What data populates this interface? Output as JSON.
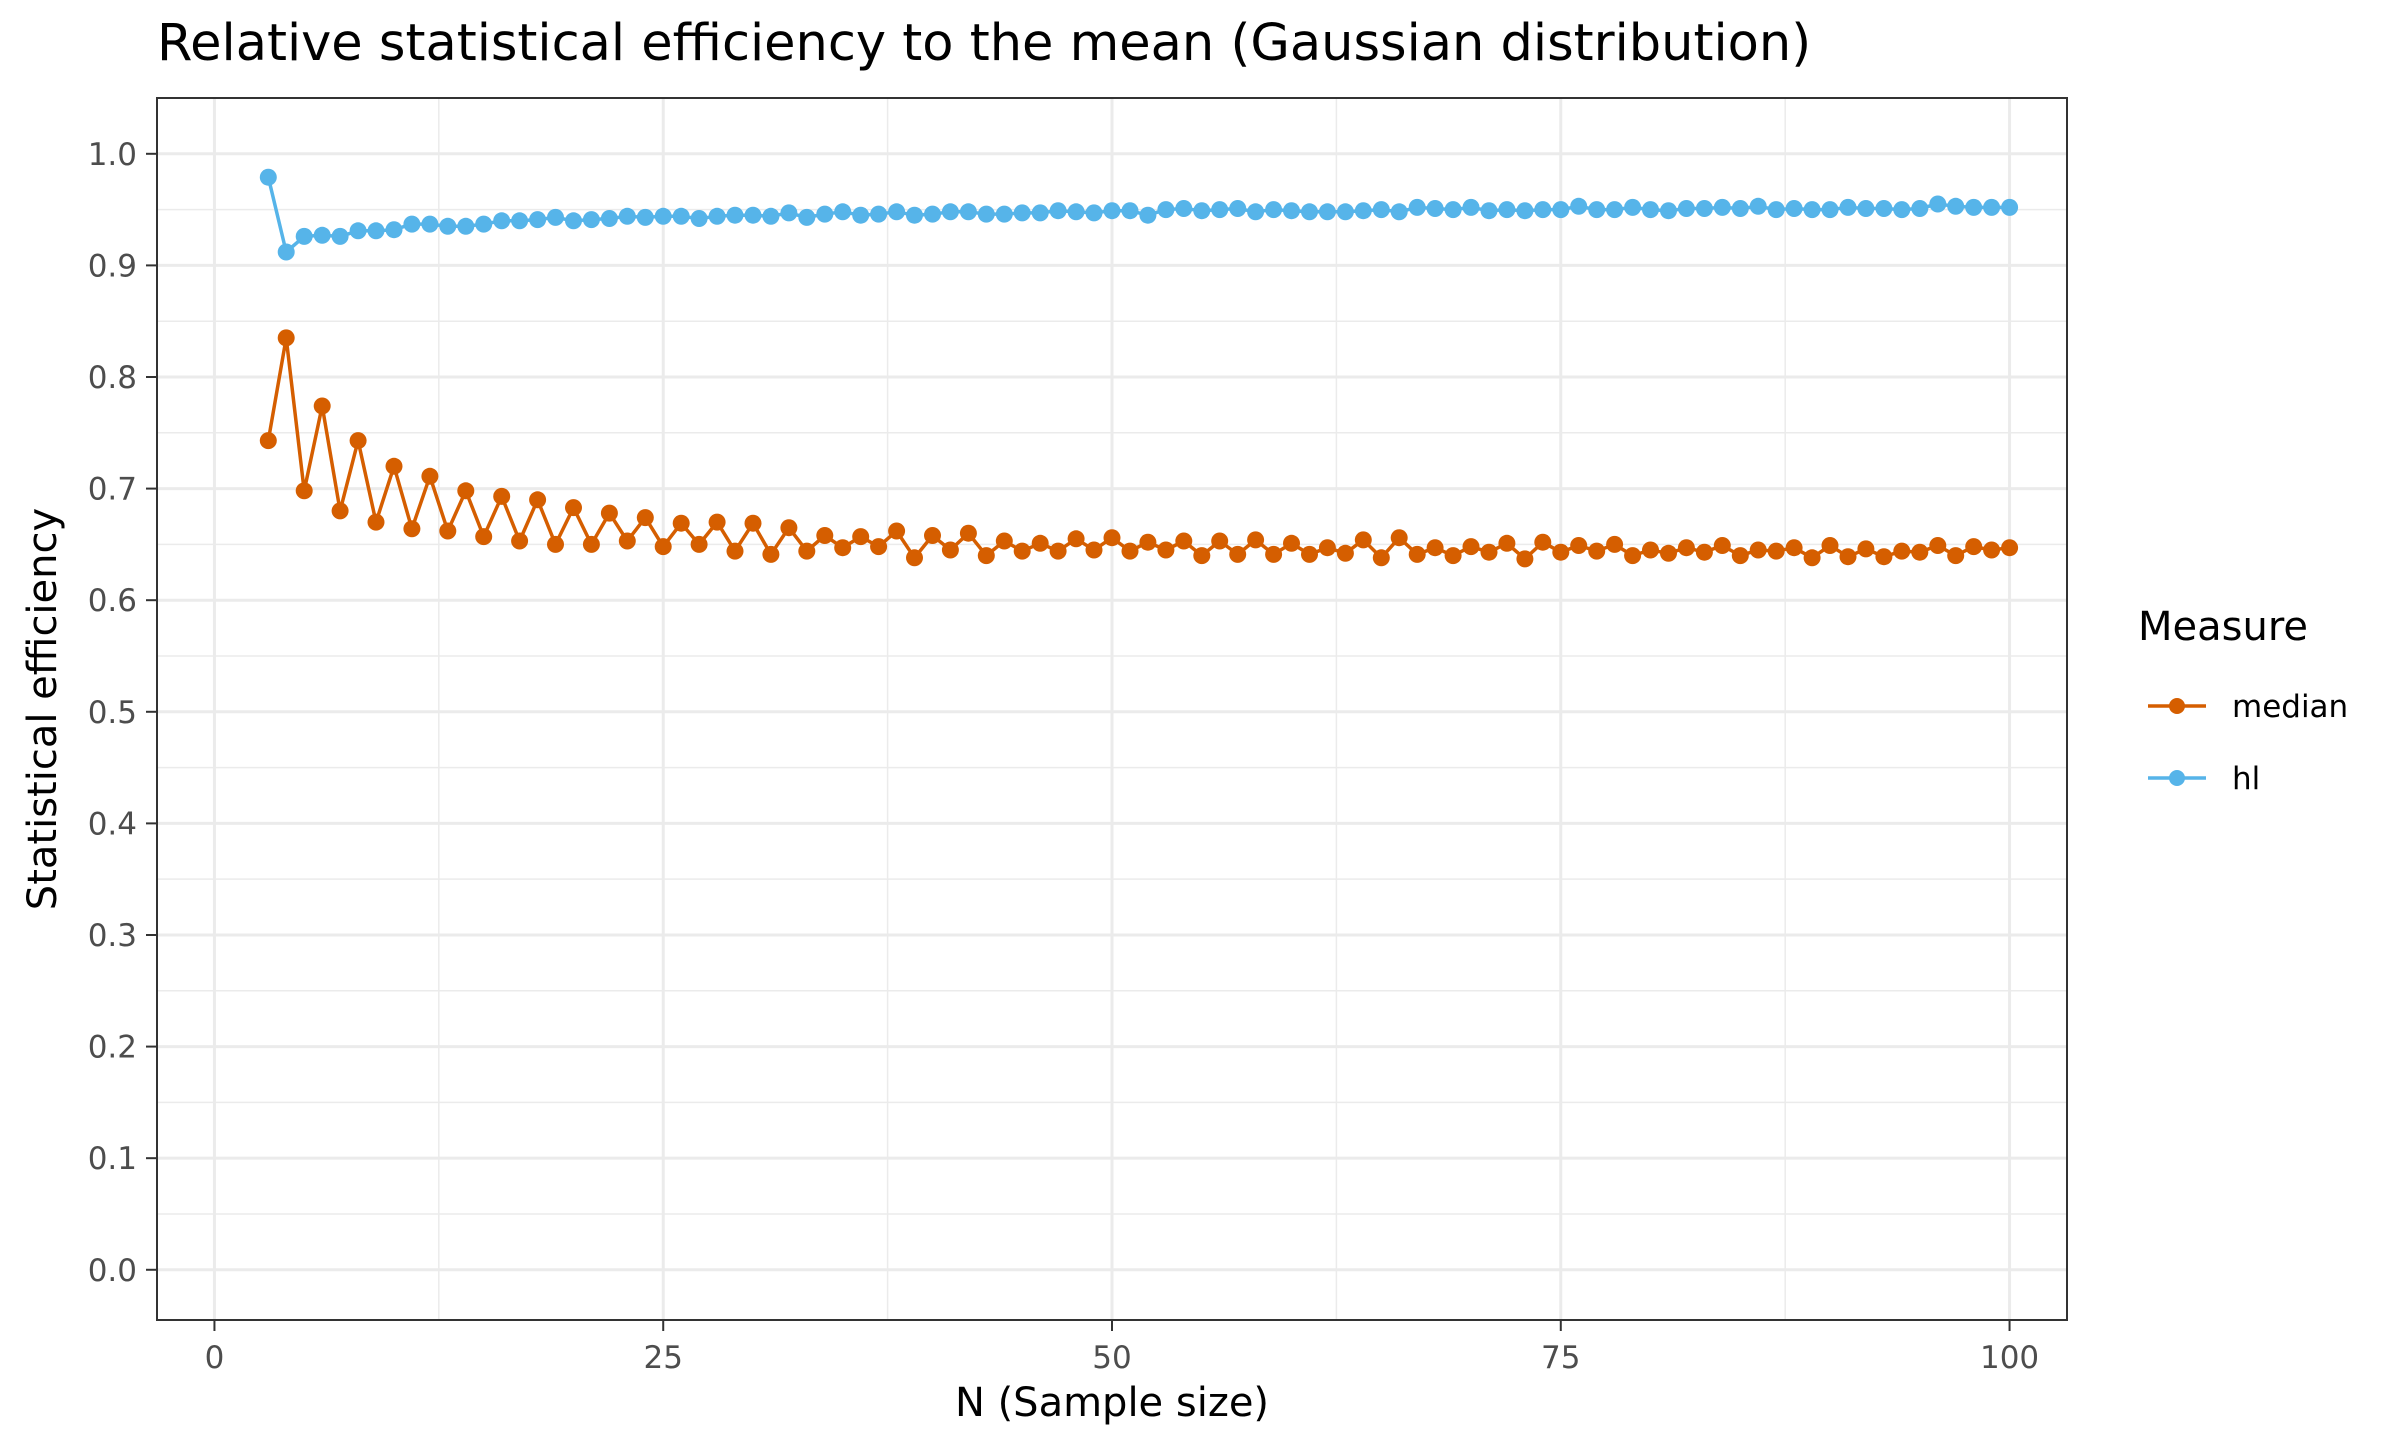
{
  "chart_data": {
    "type": "line",
    "title": "Relative statistical efficiency to the mean (Gaussian distribution)",
    "xlabel": "N (Sample size)",
    "ylabel": "Statistical efficiency",
    "xlim": [
      -3.2,
      103.2
    ],
    "ylim": [
      -0.045,
      1.05
    ],
    "x_ticks": [
      0,
      25,
      50,
      75,
      100
    ],
    "x_tick_labels": [
      "0",
      "25",
      "50",
      "75",
      "100"
    ],
    "y_ticks": [
      0.0,
      0.1,
      0.2,
      0.3,
      0.4,
      0.5,
      0.6,
      0.7,
      0.8,
      0.9,
      1.0
    ],
    "y_tick_labels": [
      "0.0",
      "0.1",
      "0.2",
      "0.3",
      "0.4",
      "0.5",
      "0.6",
      "0.7",
      "0.8",
      "0.9",
      "1.0"
    ],
    "grid": true,
    "legend": {
      "title": "Measure",
      "position": "right"
    },
    "x": [
      3,
      4,
      5,
      6,
      7,
      8,
      9,
      10,
      11,
      12,
      13,
      14,
      15,
      16,
      17,
      18,
      19,
      20,
      21,
      22,
      23,
      24,
      25,
      26,
      27,
      28,
      29,
      30,
      31,
      32,
      33,
      34,
      35,
      36,
      37,
      38,
      39,
      40,
      41,
      42,
      43,
      44,
      45,
      46,
      47,
      48,
      49,
      50,
      51,
      52,
      53,
      54,
      55,
      56,
      57,
      58,
      59,
      60,
      61,
      62,
      63,
      64,
      65,
      66,
      67,
      68,
      69,
      70,
      71,
      72,
      73,
      74,
      75,
      76,
      77,
      78,
      79,
      80,
      81,
      82,
      83,
      84,
      85,
      86,
      87,
      88,
      89,
      90,
      91,
      92,
      93,
      94,
      95,
      96,
      97,
      98,
      99,
      100
    ],
    "series": [
      {
        "name": "median",
        "color": "#d55e00",
        "values": [
          0.743,
          0.835,
          0.698,
          0.774,
          0.68,
          0.743,
          0.67,
          0.72,
          0.664,
          0.711,
          0.662,
          0.698,
          0.657,
          0.693,
          0.653,
          0.69,
          0.65,
          0.683,
          0.65,
          0.678,
          0.653,
          0.674,
          0.648,
          0.669,
          0.65,
          0.67,
          0.644,
          0.669,
          0.641,
          0.665,
          0.644,
          0.658,
          0.647,
          0.657,
          0.648,
          0.662,
          0.638,
          0.658,
          0.645,
          0.66,
          0.64,
          0.653,
          0.644,
          0.651,
          0.644,
          0.655,
          0.645,
          0.656,
          0.644,
          0.652,
          0.645,
          0.653,
          0.64,
          0.653,
          0.641,
          0.654,
          0.641,
          0.651,
          0.641,
          0.647,
          0.642,
          0.654,
          0.638,
          0.656,
          0.641,
          0.647,
          0.64,
          0.648,
          0.643,
          0.651,
          0.637,
          0.652,
          0.643,
          0.649,
          0.644,
          0.65,
          0.64,
          0.645,
          0.642,
          0.647,
          0.643,
          0.649,
          0.64,
          0.645,
          0.644,
          0.647,
          0.638,
          0.649,
          0.639,
          0.646,
          0.639,
          0.644,
          0.643,
          0.649,
          0.64,
          0.648,
          0.645,
          0.647
        ]
      },
      {
        "name": "hl",
        "color": "#56b4e9",
        "values": [
          0.979,
          0.912,
          0.926,
          0.927,
          0.926,
          0.931,
          0.931,
          0.932,
          0.937,
          0.937,
          0.935,
          0.935,
          0.937,
          0.94,
          0.94,
          0.941,
          0.943,
          0.94,
          0.941,
          0.942,
          0.944,
          0.943,
          0.944,
          0.944,
          0.942,
          0.944,
          0.945,
          0.945,
          0.944,
          0.947,
          0.943,
          0.946,
          0.948,
          0.945,
          0.946,
          0.948,
          0.945,
          0.946,
          0.948,
          0.948,
          0.946,
          0.946,
          0.947,
          0.947,
          0.949,
          0.948,
          0.947,
          0.949,
          0.949,
          0.945,
          0.95,
          0.951,
          0.949,
          0.95,
          0.951,
          0.948,
          0.95,
          0.949,
          0.948,
          0.948,
          0.948,
          0.949,
          0.95,
          0.948,
          0.952,
          0.951,
          0.95,
          0.952,
          0.949,
          0.95,
          0.949,
          0.95,
          0.95,
          0.953,
          0.95,
          0.95,
          0.952,
          0.95,
          0.949,
          0.951,
          0.951,
          0.952,
          0.951,
          0.953,
          0.95,
          0.951,
          0.95,
          0.95,
          0.952,
          0.951,
          0.951,
          0.95,
          0.951,
          0.955,
          0.953,
          0.952,
          0.952,
          0.952
        ]
      }
    ]
  }
}
